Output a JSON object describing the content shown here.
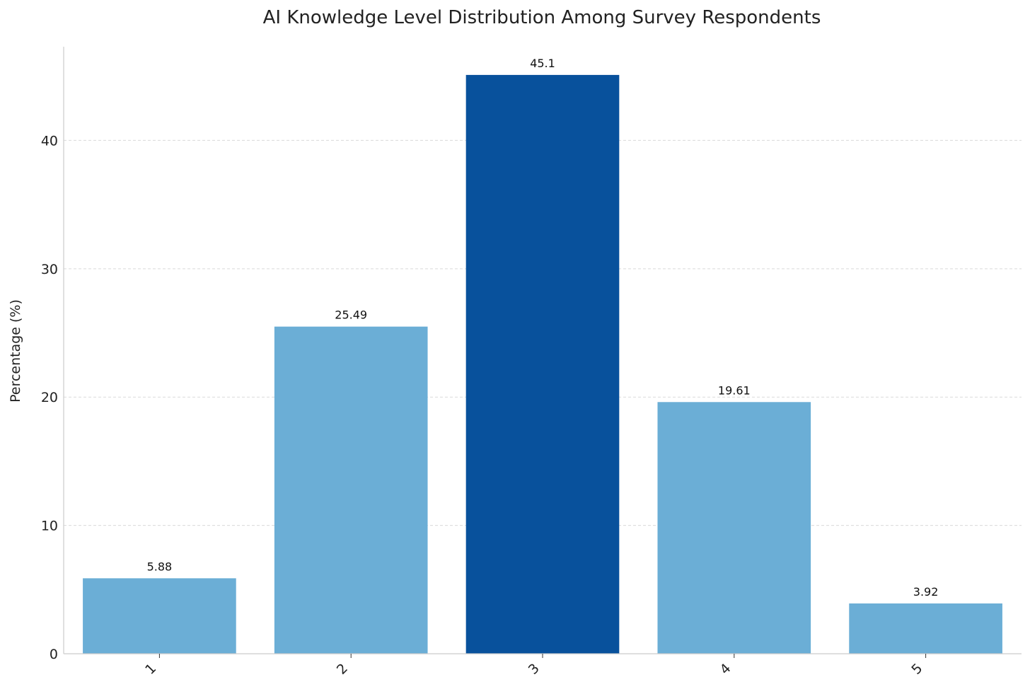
{
  "chart_data": {
    "type": "bar",
    "title": "AI Knowledge Level Distribution Among Survey Respondents",
    "xlabel": "",
    "ylabel": "Percentage (%)",
    "categories": [
      "1",
      "2",
      "3",
      "4",
      "5"
    ],
    "values": [
      5.88,
      25.49,
      45.1,
      19.61,
      3.92
    ],
    "data_labels": [
      "5.88",
      "25.49",
      "45.1",
      "19.61",
      "3.92"
    ],
    "ylim": [
      0,
      47.3
    ],
    "yticks": [
      0,
      10,
      20,
      30,
      40
    ],
    "grid": true,
    "grid_axis": "y",
    "legend": "none",
    "highlight_index": 2,
    "colors": {
      "bar": "#6baed6",
      "highlight": "#08519c",
      "grid": "#d9d9d9",
      "axis": "#cccccc",
      "text": "#222222"
    }
  }
}
